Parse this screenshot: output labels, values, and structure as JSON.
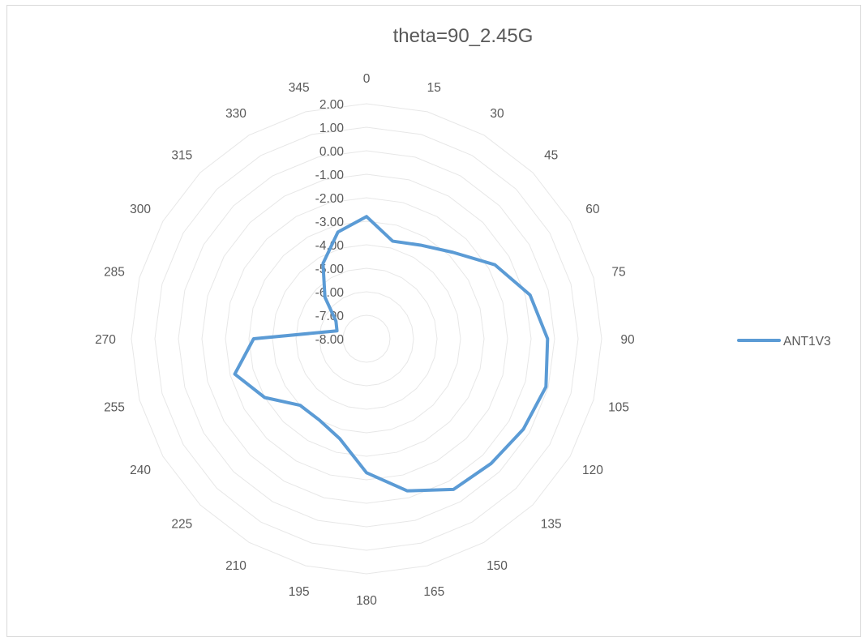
{
  "chart_data": {
    "type": "radar",
    "title": "theta=90_2.45G",
    "categories": [
      "0",
      "15",
      "30",
      "45",
      "60",
      "75",
      "90",
      "105",
      "120",
      "135",
      "150",
      "165",
      "180",
      "195",
      "210",
      "225",
      "240",
      "255",
      "270",
      "285",
      "300",
      "315",
      "330",
      "345"
    ],
    "series": [
      {
        "name": "ANT1V3",
        "color": "#5b9bd5",
        "values": [
          -2.8,
          -3.7,
          -3.4,
          -2.8,
          -1.7,
          -0.8,
          -0.3,
          -0.1,
          -0.3,
          -0.5,
          -0.6,
          -1.3,
          -2.3,
          -3.6,
          -4.0,
          -4.0,
          -3.0,
          -2.2,
          -3.2,
          -6.7,
          -6.5,
          -5.5,
          -4.3,
          -3.3
        ]
      }
    ],
    "rlim": [
      -8,
      2
    ],
    "rticks": [
      "-8.00",
      "-7.00",
      "-6.00",
      "-5.00",
      "-4.00",
      "-3.00",
      "-2.00",
      "-1.00",
      "0.00",
      "1.00",
      "2.00"
    ],
    "grid": true,
    "legend_position": "right"
  }
}
